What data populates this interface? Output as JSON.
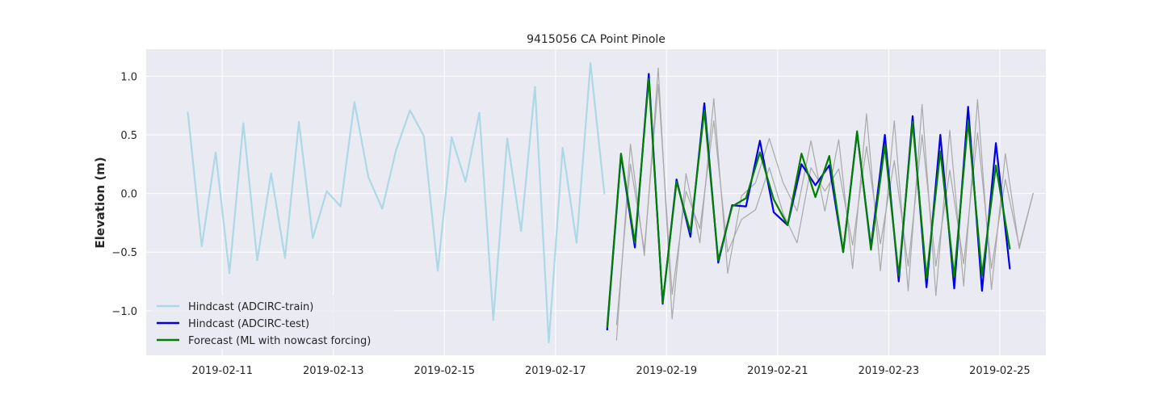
{
  "chart_data": {
    "type": "line",
    "title": "9415056 CA Point Pinole",
    "xlabel": "",
    "ylabel": "Elevation (m)",
    "x_unit": "day",
    "xlim": [
      9.63,
      25.83
    ],
    "ylim": [
      -1.38,
      1.23
    ],
    "xticks": [
      {
        "x": 11,
        "label": "2019-02-11"
      },
      {
        "x": 13,
        "label": "2019-02-13"
      },
      {
        "x": 15,
        "label": "2019-02-15"
      },
      {
        "x": 17,
        "label": "2019-02-17"
      },
      {
        "x": 19,
        "label": "2019-02-19"
      },
      {
        "x": 21,
        "label": "2019-02-21"
      },
      {
        "x": 23,
        "label": "2019-02-23"
      },
      {
        "x": 25,
        "label": "2019-02-25"
      }
    ],
    "yticks": [
      {
        "y": 1.0,
        "label": "1.0"
      },
      {
        "y": 0.5,
        "label": "0.5"
      },
      {
        "y": 0.0,
        "label": "0.0"
      },
      {
        "y": -0.5,
        "label": "−0.5"
      },
      {
        "y": -1.0,
        "label": "−1.0"
      }
    ],
    "grid": true,
    "legend_position": "lower-left",
    "background": "#eaeaf2",
    "series": [
      {
        "name": "Hindcast (ADCIRC-train)",
        "color": "#add8e6",
        "x": [
          10.38,
          10.63,
          10.88,
          11.13,
          11.38,
          11.63,
          11.88,
          12.13,
          12.38,
          12.63,
          12.88,
          13.13,
          13.38,
          13.63,
          13.88,
          14.13,
          14.38,
          14.63,
          14.88,
          15.13,
          15.38,
          15.63,
          15.88,
          16.13,
          16.38,
          16.63,
          16.88,
          17.13,
          17.38,
          17.63,
          17.88
        ],
        "y": [
          0.69,
          -0.45,
          0.35,
          -0.68,
          0.6,
          -0.57,
          0.17,
          -0.55,
          0.61,
          -0.38,
          0.02,
          -0.11,
          0.78,
          0.14,
          -0.13,
          0.37,
          0.71,
          0.49,
          -0.66,
          0.48,
          0.1,
          0.69,
          -1.08,
          0.47,
          -0.32,
          0.91,
          -1.27,
          0.39,
          -0.42,
          1.11,
          0.0
        ]
      },
      {
        "name": "",
        "color": "#a9a9a9",
        "width": 1.2,
        "x": [
          18.1,
          18.35,
          18.6,
          18.85,
          19.1,
          19.35,
          19.6,
          19.85,
          20.1,
          20.35,
          20.6,
          20.85,
          21.1,
          21.35,
          21.6,
          21.85,
          22.1,
          22.35,
          22.6,
          22.85,
          23.1,
          23.35,
          23.6,
          23.85,
          24.1,
          24.35,
          24.6,
          24.85,
          25.1,
          25.35,
          25.6
        ],
        "y": [
          -1.25,
          0.42,
          -0.53,
          1.07,
          -1.07,
          0.17,
          -0.42,
          0.81,
          -0.68,
          -0.02,
          0.09,
          0.47,
          0.09,
          -0.15,
          0.45,
          -0.15,
          0.46,
          -0.64,
          0.68,
          -0.66,
          0.62,
          -0.83,
          0.76,
          -0.87,
          0.54,
          -0.79,
          0.8,
          -0.82,
          0.34,
          -0.47,
          0.0
        ]
      },
      {
        "name": "",
        "color": "#a9a9a9",
        "width": 1.2,
        "x": [
          18.1,
          18.35,
          18.6,
          18.85,
          19.1,
          19.35,
          19.6,
          19.85,
          20.1,
          20.35,
          20.6,
          20.85,
          21.1,
          21.35,
          21.6,
          21.85,
          22.1,
          22.35,
          22.6,
          22.85,
          23.1,
          23.35,
          23.6,
          23.85,
          24.1,
          24.35,
          24.6,
          24.85,
          25.1,
          25.35,
          25.6
        ],
        "y": [
          -1.12,
          0.25,
          -0.48,
          0.93,
          -0.86,
          0.02,
          -0.3,
          0.62,
          -0.5,
          -0.22,
          -0.14,
          0.22,
          -0.17,
          -0.42,
          0.22,
          0.02,
          0.21,
          -0.44,
          0.4,
          -0.43,
          0.28,
          -0.62,
          0.5,
          -0.62,
          0.2,
          -0.6,
          0.52,
          -0.64,
          0.12,
          -0.45,
          0.0
        ]
      },
      {
        "name": "Hindcast (ADCIRC-test)",
        "color": "#0000e6",
        "width": 2.2,
        "x": [
          17.93,
          18.18,
          18.43,
          18.68,
          18.93,
          19.18,
          19.43,
          19.68,
          19.93,
          20.18,
          20.43,
          20.68,
          20.93,
          21.18,
          21.43,
          21.68,
          21.93,
          22.18,
          22.43,
          22.68,
          22.93,
          23.18,
          23.43,
          23.68,
          23.93,
          24.18,
          24.43,
          24.68,
          24.93,
          25.18
        ],
        "y": [
          -1.16,
          0.33,
          -0.46,
          1.02,
          -0.94,
          0.12,
          -0.37,
          0.77,
          -0.59,
          -0.1,
          -0.11,
          0.45,
          -0.16,
          -0.27,
          0.25,
          0.07,
          0.24,
          -0.5,
          0.52,
          -0.46,
          0.5,
          -0.75,
          0.66,
          -0.8,
          0.5,
          -0.81,
          0.74,
          -0.83,
          0.43,
          -0.64
        ]
      },
      {
        "name": "Forecast (ML with nowcast forcing)",
        "color": "#008000",
        "width": 2.2,
        "x": [
          17.93,
          18.18,
          18.43,
          18.68,
          18.93,
          19.18,
          19.43,
          19.68,
          19.93,
          20.18,
          20.43,
          20.68,
          20.93,
          21.18,
          21.43,
          21.68,
          21.93,
          22.18,
          22.43,
          22.68,
          22.93,
          23.18,
          23.43,
          23.68,
          23.93,
          24.18,
          24.43,
          24.68,
          24.93,
          25.18
        ],
        "y": [
          -1.14,
          0.34,
          -0.42,
          0.98,
          -0.93,
          0.1,
          -0.33,
          0.71,
          -0.57,
          -0.11,
          -0.04,
          0.35,
          -0.05,
          -0.27,
          0.34,
          -0.03,
          0.32,
          -0.5,
          0.53,
          -0.48,
          0.41,
          -0.7,
          0.61,
          -0.72,
          0.36,
          -0.71,
          0.62,
          -0.7,
          0.24,
          -0.47
        ]
      }
    ]
  }
}
